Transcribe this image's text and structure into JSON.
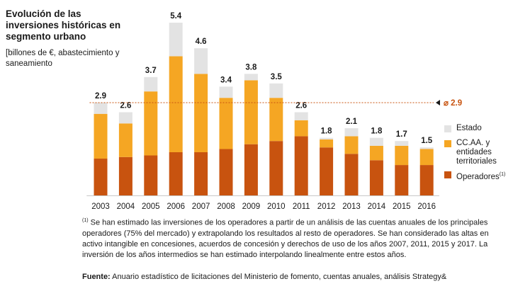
{
  "chart_data": {
    "type": "bar",
    "stacked": true,
    "title": "Evolución de las inversiones históricas en segmento urbano",
    "subtitle": "[billones de €, abastecimiento y saneamiento",
    "categories": [
      "2003",
      "2004",
      "2005",
      "2006",
      "2007",
      "2008",
      "2009",
      "2010",
      "2011",
      "2012",
      "2013",
      "2014",
      "2015",
      "2016"
    ],
    "totals": [
      2.9,
      2.6,
      3.7,
      5.4,
      4.6,
      3.4,
      3.8,
      3.5,
      2.6,
      1.8,
      2.1,
      1.8,
      1.7,
      1.5
    ],
    "series": [
      {
        "name": "Operadores",
        "color": "#c8530f",
        "values": [
          1.15,
          1.2,
          1.25,
          1.35,
          1.35,
          1.45,
          1.6,
          1.7,
          1.85,
          1.5,
          1.3,
          1.1,
          0.95,
          0.95
        ]
      },
      {
        "name": "CC.AA. y entidades territoriales",
        "color": "#f5a623",
        "values": [
          1.4,
          1.05,
          2.0,
          3.0,
          2.45,
          1.6,
          2.0,
          1.35,
          0.5,
          0.25,
          0.55,
          0.45,
          0.6,
          0.5
        ]
      },
      {
        "name": "Estado",
        "color": "#e3e3e3",
        "values": [
          0.35,
          0.35,
          0.45,
          1.05,
          0.8,
          0.35,
          0.2,
          0.45,
          0.25,
          0.05,
          0.25,
          0.25,
          0.15,
          0.05
        ]
      }
    ],
    "average": {
      "value": 2.9,
      "label": "⌀ 2.9",
      "color": "#c8530f"
    },
    "ylim": [
      0,
      5.4
    ],
    "legend_position": "right",
    "grid": false
  },
  "legend": {
    "estado": "Estado",
    "ccaa": "CC.AA. y\nentidades\nterritoriales",
    "operadores": "Operadores",
    "operadores_sup": "(1)"
  },
  "footnote": {
    "marker": "(1)",
    "text": " Se han estimado las inversiones de los operadores a partir de un análisis de las cuentas anuales de los principales operadores (75% del mercado) y extrapolando los resultados al resto de operadores. Se han considerado las altas en activo intangible en concesiones, acuerdos de concesión y derechos de uso de los años 2007, 2011, 2015 y 2017. La inversión de los años intermedios se han estimado interpolando linealmente entre estos años."
  },
  "source": {
    "label": "Fuente:",
    "text": " Anuario estadístico de licitaciones del Ministerio de fomento, cuentas anuales, análisis Strategy&"
  }
}
